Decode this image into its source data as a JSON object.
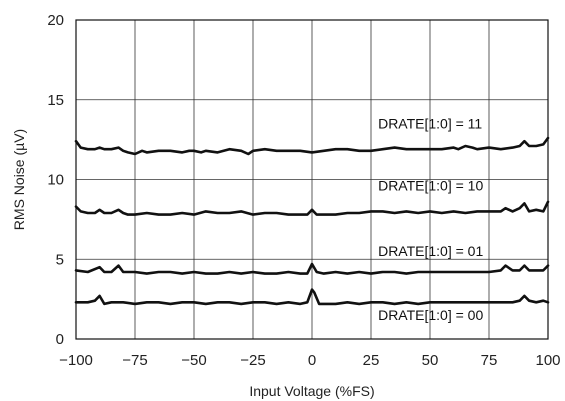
{
  "chart_data": {
    "type": "line",
    "title": "",
    "xlabel": "Input Voltage (%FS)",
    "ylabel": "RMS Noise (µV)",
    "xlim": [
      -100,
      100
    ],
    "ylim": [
      0,
      20
    ],
    "xticks": [
      -100,
      -75,
      -50,
      -25,
      0,
      25,
      50,
      75,
      100
    ],
    "yticks": [
      0,
      5,
      10,
      15,
      20
    ],
    "grid": true,
    "series": [
      {
        "name": "DRATE[1:0] = 11",
        "x": [
          -100,
          -98,
          -95,
          -92,
          -90,
          -88,
          -85,
          -82,
          -80,
          -78,
          -75,
          -72,
          -70,
          -65,
          -60,
          -55,
          -52,
          -50,
          -47,
          -45,
          -40,
          -35,
          -30,
          -27,
          -25,
          -20,
          -15,
          -10,
          -5,
          0,
          5,
          10,
          15,
          20,
          25,
          30,
          35,
          40,
          45,
          50,
          55,
          60,
          62,
          65,
          68,
          70,
          75,
          80,
          85,
          88,
          90,
          92,
          95,
          98,
          100
        ],
        "y": [
          12.4,
          12.0,
          11.9,
          11.9,
          12.0,
          11.9,
          11.9,
          12.0,
          11.8,
          11.7,
          11.6,
          11.8,
          11.7,
          11.8,
          11.8,
          11.7,
          11.8,
          11.8,
          11.7,
          11.8,
          11.7,
          11.9,
          11.8,
          11.6,
          11.8,
          11.9,
          11.8,
          11.8,
          11.8,
          11.7,
          11.8,
          11.9,
          11.9,
          11.8,
          11.8,
          11.9,
          12.0,
          11.9,
          11.9,
          11.9,
          11.9,
          12.0,
          11.9,
          12.1,
          12.0,
          11.9,
          12.0,
          11.9,
          12.0,
          12.1,
          12.4,
          12.1,
          12.1,
          12.2,
          12.6
        ]
      },
      {
        "name": "DRATE[1:0] = 10",
        "x": [
          -100,
          -98,
          -95,
          -92,
          -90,
          -88,
          -85,
          -82,
          -80,
          -78,
          -75,
          -70,
          -65,
          -60,
          -55,
          -50,
          -45,
          -40,
          -35,
          -30,
          -25,
          -20,
          -15,
          -10,
          -5,
          -2,
          0,
          2,
          5,
          10,
          15,
          20,
          25,
          30,
          35,
          40,
          45,
          50,
          55,
          60,
          65,
          70,
          75,
          80,
          82,
          85,
          88,
          90,
          92,
          95,
          98,
          100
        ],
        "y": [
          8.3,
          8.0,
          7.9,
          7.9,
          8.1,
          7.9,
          7.9,
          8.1,
          7.9,
          7.8,
          7.8,
          7.9,
          7.8,
          7.8,
          7.9,
          7.8,
          8.0,
          7.9,
          7.9,
          8.0,
          7.8,
          7.9,
          7.9,
          7.8,
          7.8,
          7.8,
          8.1,
          7.8,
          7.8,
          7.8,
          7.9,
          7.9,
          8.0,
          8.0,
          7.9,
          8.0,
          7.9,
          8.0,
          7.9,
          8.0,
          7.9,
          8.0,
          8.0,
          8.0,
          8.2,
          8.0,
          8.2,
          8.5,
          8.0,
          8.1,
          8.0,
          8.6
        ]
      },
      {
        "name": "DRATE[1:0] = 01",
        "x": [
          -100,
          -95,
          -90,
          -88,
          -85,
          -82,
          -80,
          -75,
          -70,
          -65,
          -60,
          -55,
          -50,
          -45,
          -40,
          -35,
          -30,
          -25,
          -20,
          -15,
          -10,
          -5,
          -2,
          0,
          2,
          5,
          10,
          15,
          20,
          25,
          30,
          35,
          40,
          45,
          50,
          55,
          60,
          65,
          70,
          75,
          80,
          82,
          85,
          88,
          90,
          92,
          95,
          98,
          100
        ],
        "y": [
          4.3,
          4.2,
          4.5,
          4.2,
          4.2,
          4.6,
          4.2,
          4.2,
          4.1,
          4.2,
          4.2,
          4.1,
          4.2,
          4.1,
          4.1,
          4.2,
          4.1,
          4.2,
          4.1,
          4.1,
          4.2,
          4.1,
          4.1,
          4.7,
          4.2,
          4.1,
          4.2,
          4.1,
          4.2,
          4.1,
          4.2,
          4.2,
          4.1,
          4.2,
          4.2,
          4.2,
          4.2,
          4.2,
          4.2,
          4.2,
          4.3,
          4.6,
          4.3,
          4.3,
          4.6,
          4.3,
          4.3,
          4.3,
          4.6
        ]
      },
      {
        "name": "DRATE[1:0] = 00",
        "x": [
          -100,
          -95,
          -92,
          -90,
          -88,
          -85,
          -80,
          -75,
          -70,
          -65,
          -60,
          -55,
          -50,
          -45,
          -40,
          -35,
          -30,
          -25,
          -20,
          -15,
          -10,
          -5,
          -2,
          0,
          1,
          3,
          5,
          10,
          15,
          20,
          25,
          30,
          35,
          40,
          45,
          50,
          55,
          60,
          65,
          70,
          75,
          80,
          85,
          88,
          90,
          92,
          95,
          98,
          100
        ],
        "y": [
          2.3,
          2.3,
          2.4,
          2.7,
          2.2,
          2.3,
          2.3,
          2.2,
          2.3,
          2.3,
          2.2,
          2.3,
          2.3,
          2.2,
          2.3,
          2.3,
          2.2,
          2.3,
          2.3,
          2.2,
          2.3,
          2.2,
          2.3,
          3.1,
          2.9,
          2.2,
          2.2,
          2.2,
          2.3,
          2.2,
          2.3,
          2.3,
          2.2,
          2.3,
          2.2,
          2.3,
          2.3,
          2.3,
          2.3,
          2.3,
          2.3,
          2.3,
          2.3,
          2.4,
          2.7,
          2.4,
          2.3,
          2.4,
          2.3
        ]
      }
    ],
    "annotations": [
      {
        "text": "DRATE[1:0] = 11",
        "x": 28,
        "y": 13.2
      },
      {
        "text": "DRATE[1:0] = 10",
        "x": 28,
        "y": 9.3
      },
      {
        "text": "DRATE[1:0] = 01",
        "x": 28,
        "y": 5.2
      },
      {
        "text": "DRATE[1:0] = 00",
        "x": 28,
        "y": 1.2
      }
    ]
  }
}
